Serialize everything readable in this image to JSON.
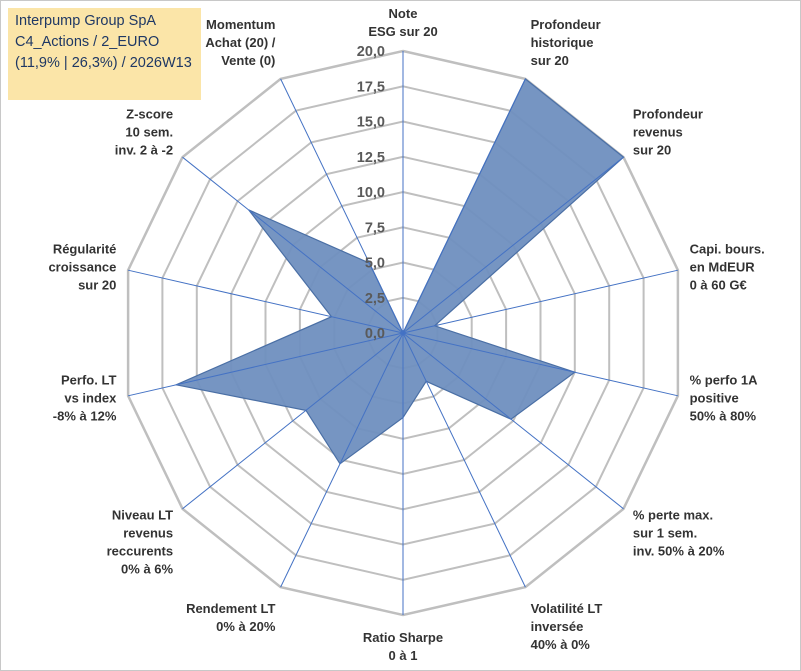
{
  "title_box": {
    "line1": "Interpump Group SpA",
    "line2": "C4_Actions / 2_EURO",
    "line3": "(11,9% | 26,3%) / 2026W13"
  },
  "chart_data": {
    "type": "radar",
    "rmin": 0,
    "rmax": 20,
    "ticks": [
      "0,0",
      "2,5",
      "5,0",
      "7,5",
      "10,0",
      "12,5",
      "15,0",
      "17,5",
      "20,0"
    ],
    "axes": [
      {
        "label": [
          "Note",
          "ESG sur 20"
        ],
        "value": 0
      },
      {
        "label": [
          "Profondeur",
          "historique",
          "sur 20"
        ],
        "value": 20
      },
      {
        "label": [
          "Profondeur",
          "revenus",
          "sur 20"
        ],
        "value": 20
      },
      {
        "label": [
          "Capi. bours.",
          "en MdEUR",
          "0 à 60 G€"
        ],
        "value": 2.3
      },
      {
        "label": [
          "% perfo 1A",
          "positive",
          "50% à 80%"
        ],
        "value": 12.5
      },
      {
        "label": [
          "% perte max.",
          "sur 1 sem.",
          "inv. 50% à 20%"
        ],
        "value": 9.8
      },
      {
        "label": [
          "Volatilité LT",
          "inversée",
          "40% à 0%"
        ],
        "value": 3.8
      },
      {
        "label": [
          "Ratio Sharpe",
          "0 à 1"
        ],
        "value": 6.0
      },
      {
        "label": [
          "Rendement LT",
          "0% à 20%"
        ],
        "value": 10.3
      },
      {
        "label": [
          "Niveau LT",
          "revenus",
          "reccurents",
          "0% à 6%"
        ],
        "value": 8.8
      },
      {
        "label": [
          "Perfo. LT",
          "vs index",
          "-8% à 12%"
        ],
        "value": 16.5
      },
      {
        "label": [
          "Régularité",
          "croissance",
          "sur 20"
        ],
        "value": 5.2
      },
      {
        "label": [
          "Z-score",
          "10 sem.",
          "inv. 2 à -2"
        ],
        "value": 14.0
      },
      {
        "label": [
          "Momentum",
          "Achat (20) /",
          "Vente (0)"
        ],
        "value": 5.5
      }
    ],
    "grid": true,
    "legend": "none",
    "fill_color": "#6f8fbf",
    "line_color": "#4a6fa5",
    "spoke_color": "#4472c4",
    "grid_color": "#bfbfbf"
  }
}
